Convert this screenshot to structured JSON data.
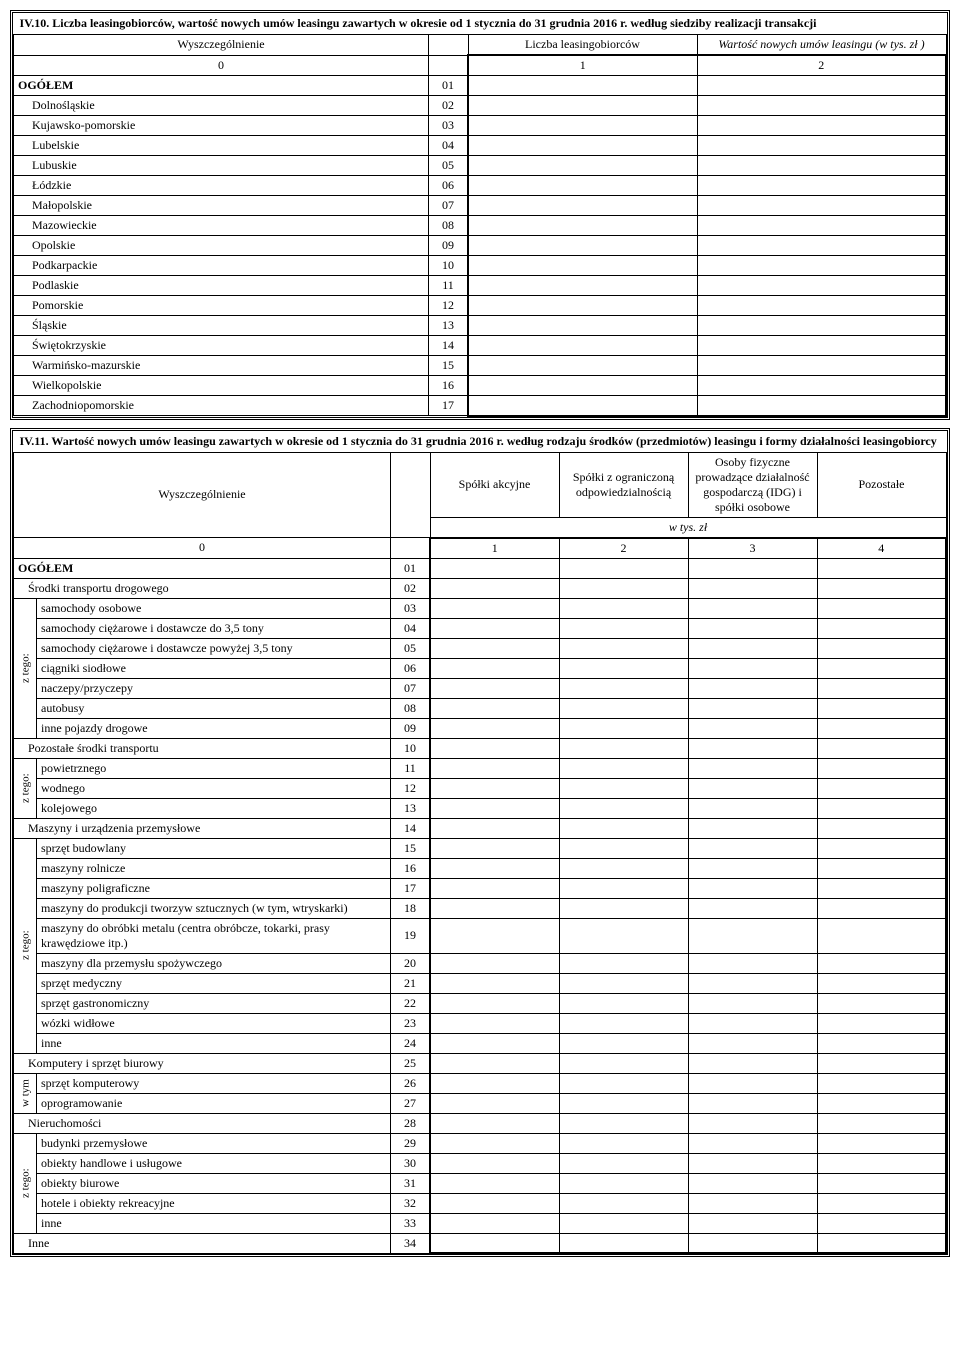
{
  "table1": {
    "title": "IV.10. Liczba leasingobiorców, wartość nowych umów leasingu zawartych w okresie od 1 stycznia do 31 grudnia 2016 r. według siedziby realizacji transakcji",
    "headers": {
      "wysz": "Wyszczególnienie",
      "liczba": "Liczba leasingobiorców",
      "wartosc": "Wartość nowych umów leasingu (w tys. zł )",
      "zero": "0",
      "one": "1",
      "two": "2"
    },
    "rows": [
      {
        "label": "OGÓŁEM",
        "code": "01",
        "bold": true
      },
      {
        "label": "Dolnośląskie",
        "code": "02"
      },
      {
        "label": "Kujawsko-pomorskie",
        "code": "03"
      },
      {
        "label": "Lubelskie",
        "code": "04"
      },
      {
        "label": "Lubuskie",
        "code": "05"
      },
      {
        "label": "Łódzkie",
        "code": "06"
      },
      {
        "label": "Małopolskie",
        "code": "07"
      },
      {
        "label": "Mazowieckie",
        "code": "08"
      },
      {
        "label": "Opolskie",
        "code": "09"
      },
      {
        "label": "Podkarpackie",
        "code": "10"
      },
      {
        "label": "Podlaskie",
        "code": "11"
      },
      {
        "label": "Pomorskie",
        "code": "12"
      },
      {
        "label": "Śląskie",
        "code": "13"
      },
      {
        "label": "Świętokrzyskie",
        "code": "14"
      },
      {
        "label": "Warmińsko-mazurskie",
        "code": "15"
      },
      {
        "label": "Wielkopolskie",
        "code": "16"
      },
      {
        "label": "Zachodniopomorskie",
        "code": "17"
      }
    ]
  },
  "table2": {
    "title": "IV.11. Wartość nowych umów leasingu zawartych w okresie od 1 stycznia do 31 grudnia 2016 r. według rodzaju środków (przedmiotów) leasingu i formy działalności leasingobiorcy",
    "headers": {
      "wysz": "Wyszczególnienie",
      "c1": "Spółki akcyjne",
      "c2": "Spółki z ograniczoną odpowiedzialnością",
      "c3": "Osoby fizyczne prowadzące działalność gospodarczą (IDG) i spółki osobowe",
      "c4": "Pozostałe",
      "unit": "w tys. zł",
      "zero": "0",
      "n1": "1",
      "n2": "2",
      "n3": "3",
      "n4": "4"
    },
    "groups": {
      "ztego": "z tego:",
      "wtym": "w tym"
    },
    "rows": [
      {
        "label": "OGÓŁEM",
        "code": "01",
        "bold": true,
        "span": true
      },
      {
        "label": "Środki transportu drogowego",
        "code": "02",
        "span": true,
        "indent": 1
      },
      {
        "label": "samochody osobowe",
        "code": "03",
        "group": "g1"
      },
      {
        "label": "samochody ciężarowe i dostawcze do 3,5 tony",
        "code": "04",
        "group": "g1"
      },
      {
        "label": "samochody ciężarowe i dostawcze powyżej 3,5 tony",
        "code": "05",
        "group": "g1"
      },
      {
        "label": "ciągniki siodłowe",
        "code": "06",
        "group": "g1"
      },
      {
        "label": "naczepy/przyczepy",
        "code": "07",
        "group": "g1"
      },
      {
        "label": "autobusy",
        "code": "08",
        "group": "g1"
      },
      {
        "label": "inne pojazdy drogowe",
        "code": "09",
        "group": "g1"
      },
      {
        "label": "Pozostałe środki transportu",
        "code": "10",
        "span": true,
        "indent": 1
      },
      {
        "label": "powietrznego",
        "code": "11",
        "group": "g2"
      },
      {
        "label": "wodnego",
        "code": "12",
        "group": "g2"
      },
      {
        "label": "kolejowego",
        "code": "13",
        "group": "g2"
      },
      {
        "label": "Maszyny i urządzenia przemysłowe",
        "code": "14",
        "span": true,
        "indent": 1
      },
      {
        "label": "sprzęt budowlany",
        "code": "15",
        "group": "g3"
      },
      {
        "label": "maszyny rolnicze",
        "code": "16",
        "group": "g3"
      },
      {
        "label": "maszyny poligraficzne",
        "code": "17",
        "group": "g3"
      },
      {
        "label": "maszyny do produkcji tworzyw sztucznych (w tym, wtryskarki)",
        "code": "18",
        "group": "g3"
      },
      {
        "label": "maszyny do obróbki metalu (centra obróbcze, tokarki, prasy krawędziowe itp.)",
        "code": "19",
        "group": "g3"
      },
      {
        "label": "maszyny dla przemysłu spożywczego",
        "code": "20",
        "group": "g3"
      },
      {
        "label": "sprzęt medyczny",
        "code": "21",
        "group": "g3"
      },
      {
        "label": "sprzęt gastronomiczny",
        "code": "22",
        "group": "g3"
      },
      {
        "label": "wózki widłowe",
        "code": "23",
        "group": "g3"
      },
      {
        "label": "inne",
        "code": "24",
        "group": "g3"
      },
      {
        "label": "Komputery i sprzęt biurowy",
        "code": "25",
        "span": true,
        "indent": 1
      },
      {
        "label": "sprzęt komputerowy",
        "code": "26",
        "group": "g4"
      },
      {
        "label": "oprogramowanie",
        "code": "27",
        "group": "g4"
      },
      {
        "label": "Nieruchomości",
        "code": "28",
        "span": true,
        "indent": 1
      },
      {
        "label": "budynki przemysłowe",
        "code": "29",
        "group": "g5"
      },
      {
        "label": "obiekty handlowe i usługowe",
        "code": "30",
        "group": "g5"
      },
      {
        "label": "obiekty biurowe",
        "code": "31",
        "group": "g5"
      },
      {
        "label": "hotele i obiekty rekreacyjne",
        "code": "32",
        "group": "g5"
      },
      {
        "label": "inne",
        "code": "33",
        "group": "g5"
      },
      {
        "label": "Inne",
        "code": "34",
        "span": true,
        "indent": 1
      }
    ],
    "groupDefs": {
      "g1": {
        "label": "ztego",
        "size": 7
      },
      "g2": {
        "label": "ztego",
        "size": 3
      },
      "g3": {
        "label": "ztego",
        "size": 10
      },
      "g4": {
        "label": "wtym",
        "size": 2
      },
      "g5": {
        "label": "ztego",
        "size": 5
      }
    }
  }
}
